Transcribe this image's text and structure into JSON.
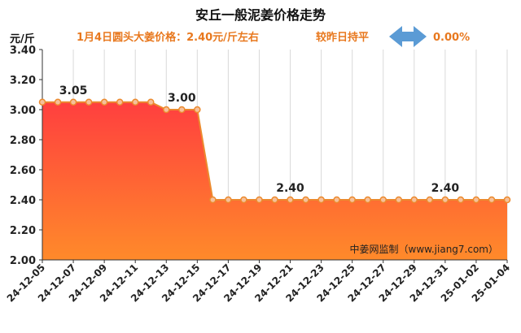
{
  "title": "安丘一般泥姜价格走势",
  "info": {
    "price_text": "1月4日圆头大姜价格：2.40元/斤左右",
    "change_text": "较昨日持平",
    "change_icon": "left-right-arrow-icon",
    "change_value": "0.00%",
    "accent_color": "#e8781e",
    "arrow_color": "#5b9bd5"
  },
  "source": "中姜网监制（www.jiang7.com）",
  "chart_data": {
    "type": "area",
    "ylabel": "元/斤",
    "ylim": [
      2.0,
      3.4
    ],
    "yticks": [
      "2.00",
      "2.20",
      "2.40",
      "2.60",
      "2.80",
      "3.00",
      "3.20",
      "3.40"
    ],
    "grid": "vertical",
    "colors": {
      "fill_top": "#ff3f3f",
      "fill_bottom": "#ff8a2a",
      "line": "#ec8a2e",
      "marker_fill": "#f6c09a"
    },
    "x_labels": [
      "24-12-05",
      "24-12-07",
      "24-12-09",
      "24-12-11",
      "24-12-13",
      "24-12-15",
      "24-12-17",
      "24-12-19",
      "24-12-21",
      "24-12-23",
      "24-12-25",
      "24-12-27",
      "24-12-29",
      "24-12-31",
      "25-01-02",
      "25-01-04"
    ],
    "series": [
      {
        "values": [
          3.05,
          3.05,
          3.05,
          3.05,
          3.05,
          3.05,
          3.05,
          3.05,
          3.0,
          3.0,
          3.0,
          2.4,
          2.4,
          2.4,
          2.4,
          2.4,
          2.4,
          2.4,
          2.4,
          2.4,
          2.4,
          2.4,
          2.4,
          2.4,
          2.4,
          2.4,
          2.4,
          2.4,
          2.4,
          2.4,
          2.4
        ]
      }
    ],
    "data_labels": [
      {
        "index": 2,
        "text": "3.05"
      },
      {
        "index": 9,
        "text": "3.00"
      },
      {
        "index": 16,
        "text": "2.40"
      },
      {
        "index": 26,
        "text": "2.40"
      }
    ]
  }
}
